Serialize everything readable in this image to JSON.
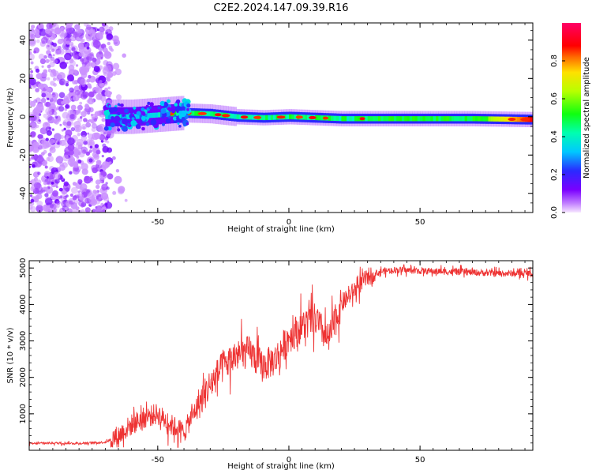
{
  "figure_title": "C2E2.2024.147.09.39.R16",
  "chart_data": [
    {
      "type": "heatmap",
      "xlabel": "Height of straight line (km)",
      "ylabel": "Frequency (Hz)",
      "xlim": [
        -99,
        93
      ],
      "ylim": [
        -50,
        49
      ],
      "x_ticks": [
        -50,
        0,
        50
      ],
      "y_ticks": [
        -40,
        -20,
        0,
        20,
        40
      ],
      "colorbar": {
        "label": "Normalized spectral amplitude",
        "range": [
          0,
          1
        ],
        "ticks": [
          0.0,
          0.2,
          0.4,
          0.6,
          0.8
        ],
        "colormap": "rainbow (violet → blue → cyan → green → yellow → red → pink)"
      },
      "ridge": {
        "x_start": -70,
        "x_end": 93,
        "center_freq_hz": [
          [
            -70,
            0
          ],
          [
            -60,
            0
          ],
          [
            -50,
            1
          ],
          [
            -40,
            2
          ],
          [
            -30,
            1.5
          ],
          [
            -20,
            0
          ],
          [
            -10,
            -0.5
          ],
          [
            0,
            0
          ],
          [
            10,
            -0.5
          ],
          [
            20,
            -1
          ],
          [
            30,
            -1
          ],
          [
            50,
            -1
          ],
          [
            70,
            -1
          ],
          [
            93,
            -1.5
          ]
        ]
      },
      "noise_region": {
        "x_from": -99,
        "x_to": -68,
        "freq_from": -50,
        "freq_to": 49
      }
    },
    {
      "type": "line",
      "xlabel": "Height of straight line (km)",
      "ylabel": "SNR (10 * v/v)",
      "xlim": [
        -99,
        93
      ],
      "ylim": [
        0,
        5200
      ],
      "x_ticks": [
        -50,
        0,
        50
      ],
      "y_ticks": [
        1000,
        2000,
        3000,
        4000,
        5000
      ],
      "color": "#ee3333",
      "series": [
        {
          "x": [
            -99,
            -90,
            -80,
            -70,
            -65,
            -60,
            -55,
            -50,
            -45,
            -40,
            -35,
            -30,
            -25,
            -20,
            -15,
            -10,
            -5,
            0,
            5,
            10,
            15,
            20,
            25,
            30,
            35,
            40,
            50,
            60,
            70,
            80,
            93
          ],
          "values": [
            180,
            200,
            190,
            220,
            400,
            700,
            900,
            1000,
            700,
            500,
            1200,
            1800,
            2300,
            2600,
            2700,
            2300,
            2500,
            3100,
            3400,
            3600,
            3000,
            4000,
            4400,
            4750,
            4900,
            4950,
            4920,
            4900,
            4880,
            4850,
            4850
          ]
        }
      ]
    }
  ]
}
